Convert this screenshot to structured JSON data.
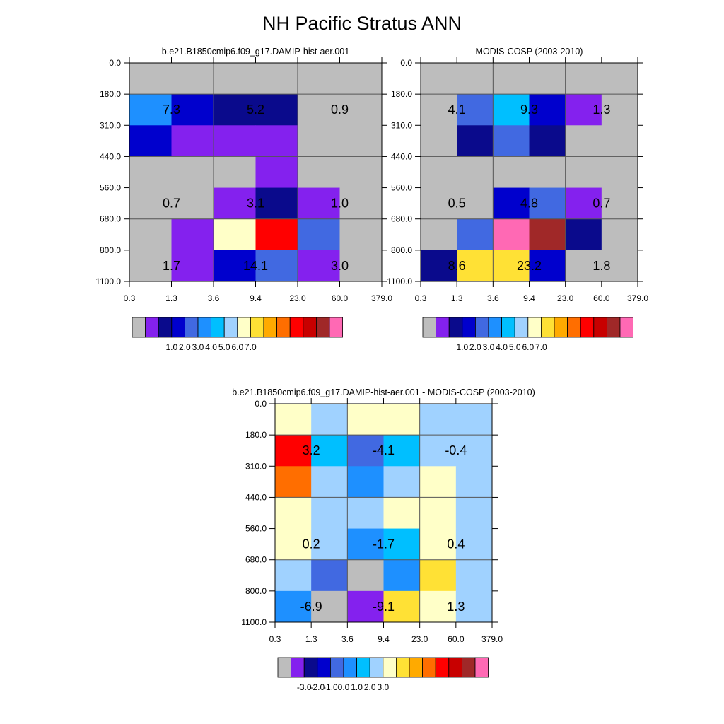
{
  "figure": {
    "title": "NH Pacific Stratus ANN"
  },
  "palette_abs": [
    "#bdbdbd",
    "#8421ee",
    "#0a0a8c",
    "#0000cd",
    "#4169e1",
    "#1e90ff",
    "#00bfff",
    "#a0d2ff",
    "#ffffc8",
    "#ffe135",
    "#ffaa00",
    "#ff6e00",
    "#ff0000",
    "#c80000",
    "#a02828",
    "#ff69b4"
  ],
  "palette_diff": [
    "#bdbdbd",
    "#8421ee",
    "#0a0a8c",
    "#0000cd",
    "#4169e1",
    "#1e90ff",
    "#00bfff",
    "#a0d2ff",
    "#ffffc8",
    "#ffe135",
    "#ffaa00",
    "#ff6e00",
    "#ff0000",
    "#c80000",
    "#a02828",
    "#ff69b4"
  ],
  "chart_data": [
    {
      "type": "heatmap",
      "title": "b.e21.B1850cmip6.f09_g17.DAMIP-hist-aer.001",
      "x_ticks": [
        "0.3",
        "1.3",
        "3.6",
        "9.4",
        "23.0",
        "60.0",
        "379.0"
      ],
      "y_ticks": [
        "0.0",
        "180.0",
        "310.0",
        "440.0",
        "560.0",
        "680.0",
        "800.0",
        "1100.0"
      ],
      "cells": [
        [
          0,
          0,
          0,
          0,
          0,
          0
        ],
        [
          5,
          3,
          2,
          2,
          0,
          0
        ],
        [
          3,
          1,
          1,
          1,
          0,
          0
        ],
        [
          0,
          0,
          0,
          1,
          0,
          0
        ],
        [
          0,
          0,
          1,
          2,
          1,
          0
        ],
        [
          0,
          1,
          8,
          12,
          4,
          0
        ],
        [
          0,
          1,
          3,
          4,
          1,
          0
        ]
      ],
      "block_labels": [
        {
          "text": "7.3",
          "col": 1,
          "row": 1
        },
        {
          "text": "5.2",
          "col": 3,
          "row": 1
        },
        {
          "text": "0.9",
          "col": 5,
          "row": 1
        },
        {
          "text": "0.7",
          "col": 1,
          "row": 4
        },
        {
          "text": "3.1",
          "col": 3,
          "row": 4
        },
        {
          "text": "1.0",
          "col": 5,
          "row": 4
        },
        {
          "text": "1.7",
          "col": 1,
          "row": 6
        },
        {
          "text": "14.1",
          "col": 3,
          "row": 6
        },
        {
          "text": "3.0",
          "col": 5,
          "row": 6
        }
      ],
      "colorbar_labels": [
        "1.0",
        "2.0",
        "3.0",
        "4.0",
        "5.0",
        "6.0",
        "7.0"
      ]
    },
    {
      "type": "heatmap",
      "title": "MODIS-COSP (2003-2010)",
      "x_ticks": [
        "0.3",
        "1.3",
        "3.6",
        "9.4",
        "23.0",
        "60.0",
        "379.0"
      ],
      "y_ticks": [
        "0.0",
        "180.0",
        "310.0",
        "440.0",
        "560.0",
        "680.0",
        "800.0",
        "1100.0"
      ],
      "cells": [
        [
          0,
          0,
          0,
          0,
          0,
          0
        ],
        [
          0,
          4,
          6,
          3,
          1,
          0
        ],
        [
          0,
          2,
          4,
          2,
          0,
          0
        ],
        [
          0,
          0,
          0,
          0,
          0,
          0
        ],
        [
          0,
          0,
          3,
          4,
          1,
          0
        ],
        [
          0,
          4,
          15,
          14,
          2,
          0
        ],
        [
          2,
          9,
          9,
          3,
          0,
          0
        ]
      ],
      "block_labels": [
        {
          "text": "4.1",
          "col": 1,
          "row": 1
        },
        {
          "text": "9.3",
          "col": 3,
          "row": 1
        },
        {
          "text": "1.3",
          "col": 5,
          "row": 1
        },
        {
          "text": "0.5",
          "col": 1,
          "row": 4
        },
        {
          "text": "4.8",
          "col": 3,
          "row": 4
        },
        {
          "text": "0.7",
          "col": 5,
          "row": 4
        },
        {
          "text": "8.6",
          "col": 1,
          "row": 6
        },
        {
          "text": "23.2",
          "col": 3,
          "row": 6
        },
        {
          "text": "1.8",
          "col": 5,
          "row": 6
        }
      ],
      "colorbar_labels": [
        "1.0",
        "2.0",
        "3.0",
        "4.0",
        "5.0",
        "6.0",
        "7.0"
      ]
    },
    {
      "type": "heatmap",
      "title": "b.e21.B1850cmip6.f09_g17.DAMIP-hist-aer.001 - MODIS-COSP (2003-2010)",
      "x_ticks": [
        "0.3",
        "1.3",
        "3.6",
        "9.4",
        "23.0",
        "60.0",
        "379.0"
      ],
      "y_ticks": [
        "0.0",
        "180.0",
        "310.0",
        "440.0",
        "560.0",
        "680.0",
        "800.0",
        "1100.0"
      ],
      "cells": [
        [
          8,
          7,
          8,
          8,
          7,
          7
        ],
        [
          12,
          6,
          4,
          6,
          7,
          7
        ],
        [
          11,
          7,
          5,
          7,
          8,
          7
        ],
        [
          8,
          7,
          7,
          8,
          8,
          7
        ],
        [
          8,
          7,
          5,
          6,
          8,
          7
        ],
        [
          7,
          4,
          0,
          5,
          9,
          7
        ],
        [
          5,
          0,
          1,
          9,
          8,
          7
        ]
      ],
      "block_labels": [
        {
          "text": "3.2",
          "col": 1,
          "row": 1
        },
        {
          "text": "-4.1",
          "col": 3,
          "row": 1
        },
        {
          "text": "-0.4",
          "col": 5,
          "row": 1
        },
        {
          "text": "0.2",
          "col": 1,
          "row": 4
        },
        {
          "text": "-1.7",
          "col": 3,
          "row": 4
        },
        {
          "text": "0.4",
          "col": 5,
          "row": 4
        },
        {
          "text": "-6.9",
          "col": 1,
          "row": 6
        },
        {
          "text": "-9.1",
          "col": 3,
          "row": 6
        },
        {
          "text": "1.3",
          "col": 5,
          "row": 6
        }
      ],
      "colorbar_labels": [
        "-3.0",
        "-2.0",
        "-1.0",
        "0.0",
        "1.0",
        "2.0",
        "3.0"
      ]
    }
  ]
}
